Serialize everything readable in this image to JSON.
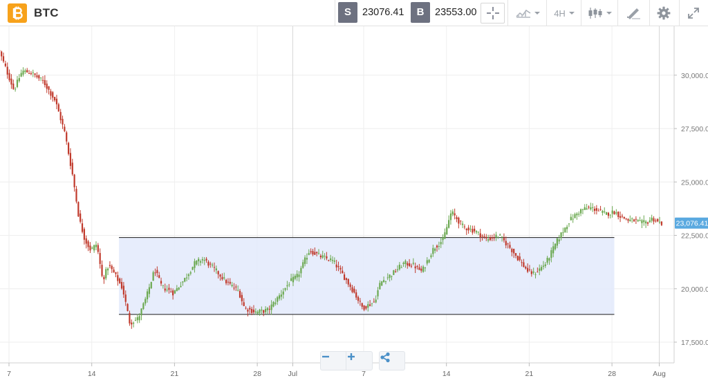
{
  "toolbar": {
    "symbol": "BTC",
    "logo_icon": "bitcoin-icon",
    "sell": {
      "tag": "S",
      "price": "23076.41"
    },
    "buy": {
      "tag": "B",
      "price": "23553.00"
    },
    "timeframe": "4H",
    "icons": [
      "crosshair-icon",
      "chart-type-icon",
      "candlestick-icon",
      "drawing-tools-icon",
      "gear-icon",
      "fullscreen-icon"
    ]
  },
  "controls": {
    "zoom_out_icon": "minus-icon",
    "zoom_in_icon": "plus-icon",
    "share_icon": "share-icon"
  },
  "colors": {
    "up": "#6aa84f",
    "down": "#c0392b",
    "band_fill": "#e3eafb",
    "band_line": "#1a1a1a",
    "current_price_bg": "#5aa9e0"
  },
  "chart_data": {
    "type": "candlestick",
    "instrument": "BTC",
    "timeframe": "4H",
    "x_tick_labels": [
      "7",
      "14",
      "21",
      "28",
      "Jul",
      "7",
      "14",
      "21",
      "28",
      "Aug"
    ],
    "x_tick_days": [
      0,
      7,
      14,
      21,
      24,
      30,
      37,
      44,
      51,
      55
    ],
    "y_ticks": [
      17500,
      20000,
      22500,
      25000,
      27500,
      30000
    ],
    "y_tick_labels": [
      "17,500.00",
      "20,000.00",
      "22,500.00",
      "25,000.00",
      "27,500.00",
      "30,000.00"
    ],
    "ylim": [
      16250,
      32000
    ],
    "current_price": 23076.41,
    "current_price_label": "23,076.41",
    "range_band": {
      "upper": 22400,
      "lower": 18800,
      "start_day": 9.3,
      "end_day": 51.2
    },
    "path_days": [
      -0.8,
      0.5,
      1.2,
      2.0,
      3.0,
      4.0,
      4.8,
      5.5,
      6.0,
      6.5,
      7.0,
      7.5,
      8.0,
      8.5,
      9.0,
      9.7,
      10.3,
      11.0,
      11.7,
      12.4,
      13.0,
      14.0,
      15.0,
      15.8,
      16.5,
      17.5,
      18.5,
      19.5,
      20.0,
      21.0,
      22.0,
      23.0,
      23.8,
      24.5,
      25.5,
      26.5,
      27.5,
      28.5,
      29.2,
      30.0,
      31.0,
      31.5,
      32.5,
      33.5,
      34.3,
      35.0,
      36.0,
      36.8,
      37.5,
      38.5,
      39.5,
      40.5,
      41.5,
      42.5,
      43.3,
      44.0,
      44.5,
      45.5,
      46.5,
      47.5,
      48.5,
      49.2,
      49.8,
      50.5,
      51.3,
      51.8,
      52.5,
      53.0,
      53.5,
      54.0,
      54.5,
      55.0,
      55.3
    ],
    "path_prices": [
      31200,
      29300,
      30200,
      30100,
      29700,
      28800,
      27300,
      25200,
      23300,
      22300,
      21800,
      22100,
      20400,
      21100,
      20700,
      20000,
      18400,
      18600,
      19600,
      20900,
      20100,
      19800,
      20500,
      21200,
      21400,
      20900,
      20300,
      19900,
      19100,
      18900,
      19000,
      19700,
      20300,
      20600,
      21800,
      21500,
      21300,
      20500,
      19900,
      19100,
      19400,
      20300,
      20700,
      21200,
      21100,
      20800,
      21900,
      22300,
      23600,
      22900,
      22700,
      22300,
      22500,
      21900,
      21300,
      20800,
      20700,
      21200,
      22300,
      23200,
      23700,
      23800,
      23700,
      23500,
      23600,
      23400,
      23200,
      23200,
      23076.41,
      23100,
      23300,
      23100,
      23076.41
    ]
  }
}
